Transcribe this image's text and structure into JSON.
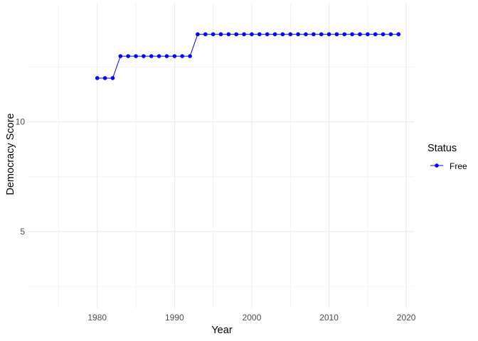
{
  "chart_data": {
    "type": "line",
    "xlabel": "Year",
    "ylabel": "Democracy Score",
    "xlim": [
      1971,
      2021
    ],
    "ylim": [
      1.5,
      15.4
    ],
    "x_ticks": [
      1980,
      1990,
      2000,
      2010,
      2020
    ],
    "x_tick_labels": [
      "1980",
      "1990",
      "2000",
      "2010",
      "2020"
    ],
    "y_ticks": [
      5,
      10
    ],
    "y_tick_labels": [
      "5",
      "10"
    ],
    "grid": true,
    "legend": {
      "title": "Status",
      "placement": "right",
      "entries": [
        "Free"
      ]
    },
    "series": [
      {
        "name": "Free",
        "color": "#0000ff",
        "x": [
          1980,
          1981,
          1982,
          1983,
          1984,
          1985,
          1986,
          1987,
          1988,
          1989,
          1990,
          1991,
          1992,
          1993,
          1994,
          1995,
          1996,
          1997,
          1998,
          1999,
          2000,
          2001,
          2002,
          2003,
          2004,
          2005,
          2006,
          2007,
          2008,
          2009,
          2010,
          2011,
          2012,
          2013,
          2014,
          2015,
          2016,
          2017,
          2018,
          2019
        ],
        "values": [
          12,
          12,
          12,
          13,
          13,
          13,
          13,
          13,
          13,
          13,
          13,
          13,
          13,
          14,
          14,
          14,
          14,
          14,
          14,
          14,
          14,
          14,
          14,
          14,
          14,
          14,
          14,
          14,
          14,
          14,
          14,
          14,
          14,
          14,
          14,
          14,
          14,
          14,
          14,
          14
        ]
      }
    ]
  }
}
